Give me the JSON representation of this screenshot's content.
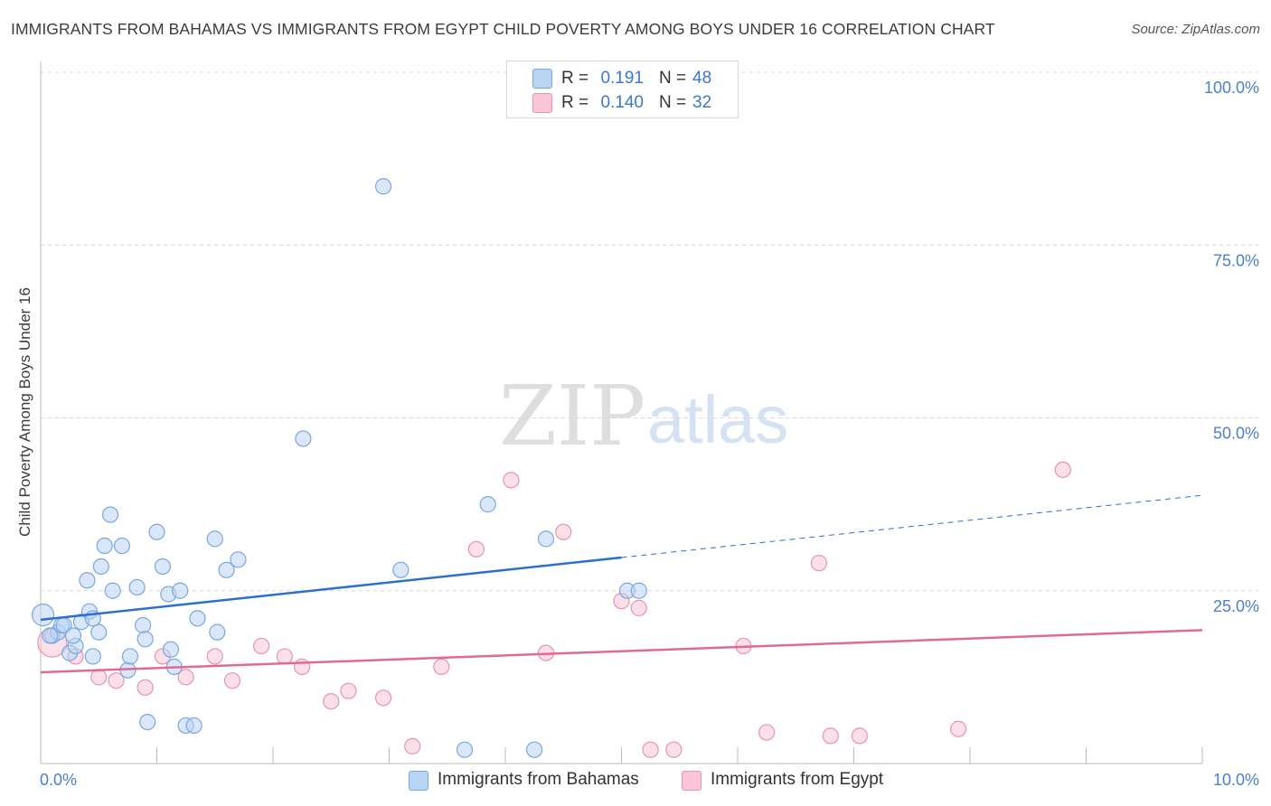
{
  "title": "IMMIGRANTS FROM BAHAMAS VS IMMIGRANTS FROM EGYPT CHILD POVERTY AMONG BOYS UNDER 16 CORRELATION CHART",
  "source": "Source: ZipAtlas.com",
  "watermark": {
    "zip": "ZIP",
    "atlas": "atlas"
  },
  "legend": {
    "rows": [
      {
        "r_label": "R =",
        "r_value": "0.191",
        "n_label": "N =",
        "n_value": "48"
      },
      {
        "r_label": "R =",
        "r_value": "0.140",
        "n_label": "N =",
        "n_value": "32"
      }
    ]
  },
  "bottom_legend": {
    "bahamas": "Immigrants from Bahamas",
    "egypt": "Immigrants from Egypt"
  },
  "colors": {
    "bahamas_fill": "#b9d3f3",
    "bahamas_stroke": "#7aa7e0",
    "bahamas_line": "#2b6fcf",
    "egypt_fill": "#f8c6d5",
    "egypt_stroke": "#e993b0",
    "egypt_line": "#e06a95",
    "tick_text": "#4a7fd0",
    "grid": "#d8d8d8"
  },
  "chart_data": {
    "type": "scatter",
    "title": "IMMIGRANTS FROM BAHAMAS VS IMMIGRANTS FROM EGYPT CHILD POVERTY AMONG BOYS UNDER 16 CORRELATION CHART",
    "xlabel": "",
    "ylabel": "Child Poverty Among Boys Under 16",
    "xlim": [
      0,
      10
    ],
    "ylim": [
      0,
      100
    ],
    "x_tick_labels": [
      "0.0%",
      "10.0%"
    ],
    "y_ticks": [
      25,
      50,
      75,
      100
    ],
    "y_tick_labels": [
      "25.0%",
      "50.0%",
      "75.0%",
      "100.0%"
    ],
    "series": [
      {
        "name": "Immigrants from Bahamas",
        "R": 0.191,
        "N": 48,
        "points": [
          [
            0.02,
            21.5
          ],
          [
            0.1,
            18.5
          ],
          [
            0.15,
            19
          ],
          [
            0.18,
            20
          ],
          [
            0.2,
            20
          ],
          [
            0.25,
            16
          ],
          [
            0.3,
            17
          ],
          [
            0.35,
            20.5
          ],
          [
            0.4,
            26.5
          ],
          [
            0.42,
            22
          ],
          [
            0.45,
            21
          ],
          [
            0.5,
            19
          ],
          [
            0.52,
            28.5
          ],
          [
            0.55,
            31.5
          ],
          [
            0.6,
            36
          ],
          [
            0.62,
            25
          ],
          [
            0.7,
            31.5
          ],
          [
            0.75,
            13.5
          ],
          [
            0.77,
            15.5
          ],
          [
            0.83,
            25.5
          ],
          [
            0.88,
            20
          ],
          [
            0.9,
            18
          ],
          [
            0.92,
            6
          ],
          [
            1.0,
            33.5
          ],
          [
            1.05,
            28.5
          ],
          [
            1.1,
            24.5
          ],
          [
            1.12,
            16.5
          ],
          [
            1.15,
            14
          ],
          [
            1.2,
            25
          ],
          [
            1.25,
            5.5
          ],
          [
            1.32,
            5.5
          ],
          [
            1.35,
            21
          ],
          [
            1.5,
            32.5
          ],
          [
            1.52,
            19
          ],
          [
            1.6,
            28
          ],
          [
            1.7,
            29.5
          ],
          [
            2.26,
            47
          ],
          [
            2.95,
            83.5
          ],
          [
            3.1,
            28
          ],
          [
            3.65,
            2
          ],
          [
            3.85,
            37.5
          ],
          [
            4.25,
            2
          ],
          [
            4.35,
            32.5
          ],
          [
            5.05,
            25
          ],
          [
            5.15,
            25
          ],
          [
            0.28,
            18.5
          ],
          [
            0.08,
            18.5
          ],
          [
            0.45,
            15.5
          ]
        ],
        "trend": {
          "x0": 0,
          "y0": 20.8,
          "x1": 5.0,
          "y1": 29.8,
          "dashed_to_x": 10,
          "dashed_to_y": 38.8
        }
      },
      {
        "name": "Immigrants from Egypt",
        "R": 0.14,
        "N": 32,
        "points": [
          [
            0.1,
            17.5
          ],
          [
            0.3,
            15.5
          ],
          [
            0.5,
            12.5
          ],
          [
            0.65,
            12
          ],
          [
            0.9,
            11
          ],
          [
            1.05,
            15.5
          ],
          [
            1.25,
            12.5
          ],
          [
            1.5,
            15.5
          ],
          [
            1.65,
            12
          ],
          [
            1.9,
            17
          ],
          [
            2.1,
            15.5
          ],
          [
            2.25,
            14
          ],
          [
            2.5,
            9
          ],
          [
            2.65,
            10.5
          ],
          [
            2.95,
            9.5
          ],
          [
            3.2,
            2.5
          ],
          [
            3.45,
            14
          ],
          [
            3.75,
            31
          ],
          [
            4.05,
            41
          ],
          [
            4.35,
            16
          ],
          [
            4.5,
            33.5
          ],
          [
            5.0,
            23.5
          ],
          [
            5.15,
            22.5
          ],
          [
            5.25,
            2
          ],
          [
            5.45,
            2
          ],
          [
            6.05,
            17
          ],
          [
            6.25,
            4.5
          ],
          [
            6.7,
            29
          ],
          [
            6.8,
            4
          ],
          [
            7.05,
            4
          ],
          [
            7.9,
            5
          ],
          [
            8.8,
            42.5
          ]
        ],
        "trend": {
          "x0": 0,
          "y0": 13.2,
          "x1": 10,
          "y1": 19.3
        }
      }
    ]
  }
}
